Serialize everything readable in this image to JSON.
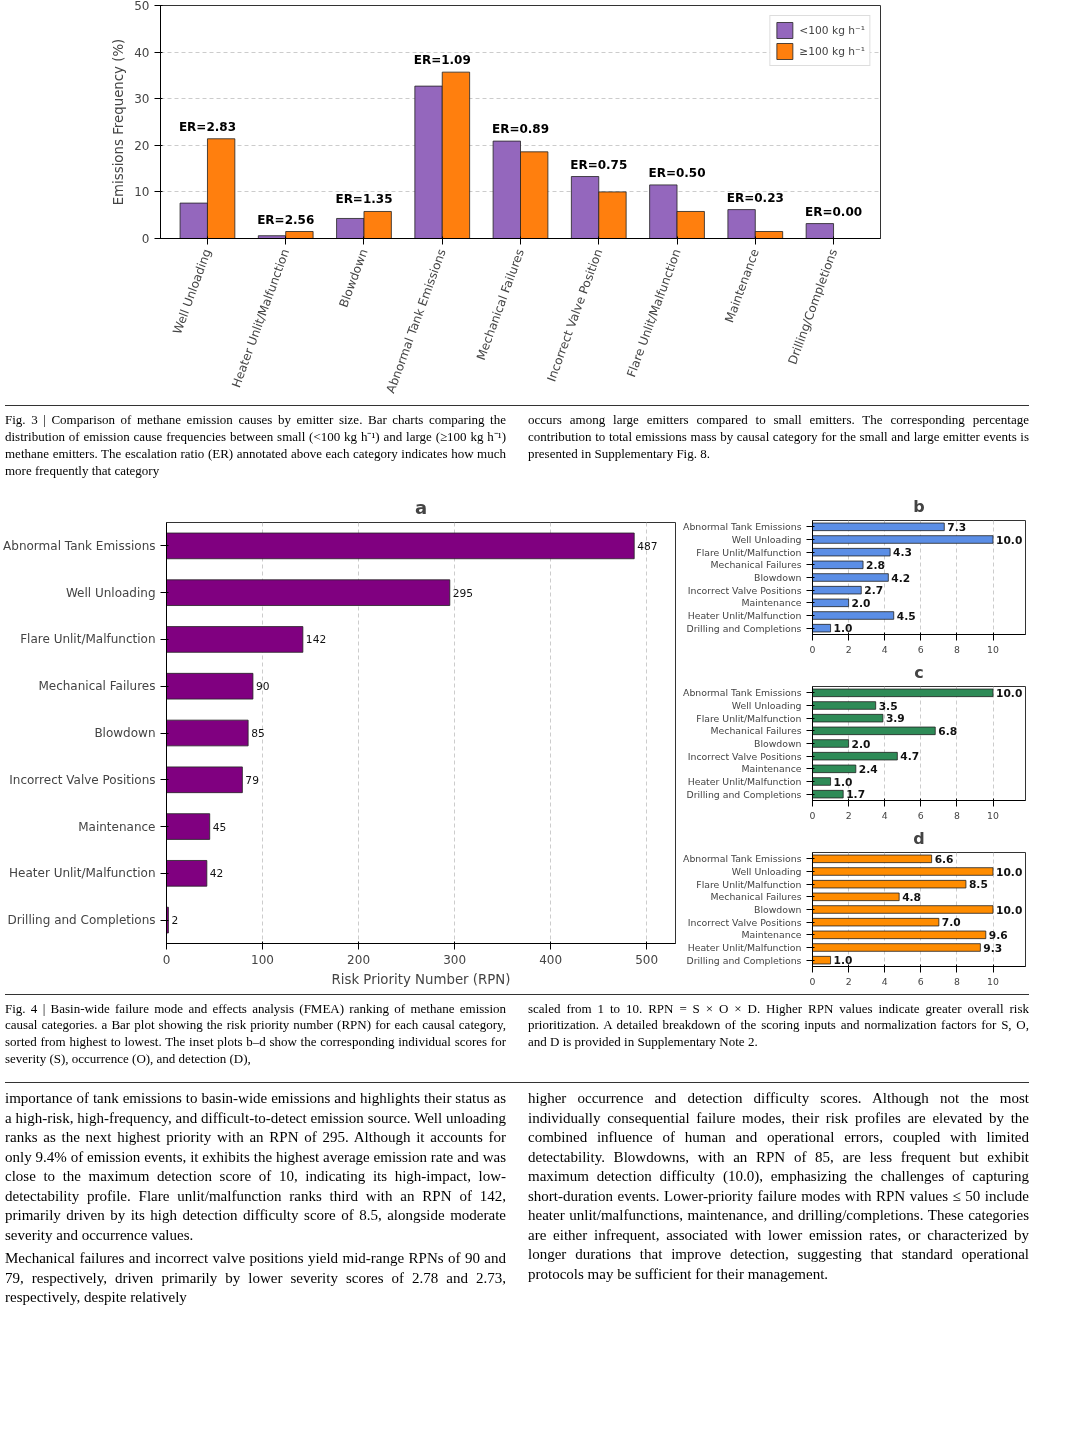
{
  "chart_data": [
    {
      "type": "bar",
      "ylabel": "Emissions Frequency (%)",
      "categories": [
        "Well Unloading",
        "Heater Unlit/Malfunction",
        "Blowdown",
        "Abnormal Tank Emissions",
        "Mechanical Failures",
        "Incorrect Valve Position",
        "Flare Unlit/Malfunction",
        "Maintenance",
        "Drilling/Completions"
      ],
      "series": [
        {
          "name": "<100 kg h⁻¹",
          "color": "#9467bd",
          "values": [
            7.6,
            0.6,
            4.3,
            32.7,
            20.9,
            13.3,
            11.5,
            6.2,
            3.2
          ]
        },
        {
          "name": "≥100 kg h⁻¹",
          "color": "#ff7f0e",
          "values": [
            21.4,
            1.5,
            5.8,
            35.7,
            18.6,
            10.0,
            5.8,
            1.5,
            0
          ]
        }
      ],
      "ylim": [
        0,
        50
      ],
      "yticks": [
        0,
        10,
        20,
        30,
        40,
        50
      ],
      "grid": "y",
      "legend": "top right",
      "annotations": [
        {
          "text": "ER=2.83",
          "x": "Well Unloading",
          "y": 21.4
        },
        {
          "text": "ER=2.56",
          "x": "Heater Unlit/Malfunction",
          "y": 1.5
        },
        {
          "text": "ER=1.35",
          "x": "Blowdown",
          "y": 5.8
        },
        {
          "text": "ER=1.09",
          "x": "Abnormal Tank Emissions",
          "y": 35.7
        },
        {
          "text": "ER=0.89",
          "x": "Mechanical Failures",
          "y": 20.9
        },
        {
          "text": "ER=0.75",
          "x": "Incorrect Valve Position",
          "y": 13.3
        },
        {
          "text": "ER=0.50",
          "x": "Flare Unlit/Malfunction",
          "y": 11.5
        },
        {
          "text": "ER=0.23",
          "x": "Maintenance",
          "y": 6.2
        },
        {
          "text": "ER=0.00",
          "x": "Drilling/Completions",
          "y": 3.2
        },
        "Fig. 3 | Comparison of methane emission causes by emitter size. Bar charts comparing the distribution of emission cause frequencies between small (<100 kg h⁻¹) and large (≥100 kg h⁻¹) methane emitters. The escalation ratio (ER) annotated above each category indicates how much more frequently that category",
        "occurs among large emitters compared to small emitters. The corresponding percentage contribution to total emissions mass by causal category for the small and large emitter events is presented in Supplementary Fig. 8."
      ]
    },
    {
      "type": "bar",
      "title": "a",
      "orientation": "horizontal",
      "xlabel": "Risk Priority Number (RPN)",
      "categories": [
        "Abnormal Tank Emissions",
        "Well Unloading",
        "Flare Unlit/Malfunction",
        "Mechanical Failures",
        "Blowdown",
        "Incorrect Valve Positions",
        "Maintenance",
        "Heater Unlit/Malfunction",
        "Drilling and Completions"
      ],
      "values": [
        487,
        295,
        142,
        90,
        85,
        79,
        45,
        42,
        2
      ],
      "color": "#800080",
      "data_labels": true,
      "xlim": [
        0,
        530
      ],
      "xticks": [
        0,
        100,
        200,
        300,
        400,
        500
      ],
      "grid": "x",
      "annotations": [
        "Fig. 4 | Basin-wide failure mode and effects analysis (FMEA) ranking of methane emission causal categories. a Bar plot showing the risk priority number (RPN) for each causal category, sorted from highest to lowest. The inset plots b–d show the corresponding individual scores for severity (S), occurrence (O), and detection (D),",
        "scaled from 1 to 10. RPN = S × O × D. Higher RPN values indicate greater overall risk prioritization. A detailed breakdown of the scoring inputs and normalization factors for S, O, and D is provided in Supplementary Note 2."
      ]
    },
    {
      "type": "bar",
      "title": "b",
      "orientation": "horizontal",
      "categories": [
        "Abnormal Tank Emissions",
        "Well Unloading",
        "Flare Unlit/Malfunction",
        "Mechanical Failures",
        "Blowdown",
        "Incorrect Valve Positions",
        "Maintenance",
        "Heater Unlit/Malfunction",
        "Drilling and Completions"
      ],
      "values": [
        7.3,
        10.0,
        4.3,
        2.8,
        4.2,
        2.7,
        2.0,
        4.5,
        1.0
      ],
      "value_labels": [
        "7.3",
        "10.0",
        "4.3",
        "2.8",
        "4.2",
        "2.7",
        "2.0",
        "4.5",
        "1.0"
      ],
      "color": "#5b8ee6",
      "xlim": [
        0,
        11.8
      ],
      "xticks": [
        0,
        2,
        4,
        6,
        8,
        10
      ],
      "grid": "x"
    },
    {
      "type": "bar",
      "title": "c",
      "orientation": "horizontal",
      "categories": [
        "Abnormal Tank Emissions",
        "Well Unloading",
        "Flare Unlit/Malfunction",
        "Mechanical Failures",
        "Blowdown",
        "Incorrect Valve Positions",
        "Maintenance",
        "Heater Unlit/Malfunction",
        "Drilling and Completions"
      ],
      "values": [
        10.0,
        3.5,
        3.9,
        6.8,
        2.0,
        4.7,
        2.4,
        1.0,
        1.7
      ],
      "value_labels": [
        "10.0",
        "3.5",
        "3.9",
        "6.8",
        "2.0",
        "4.7",
        "2.4",
        "1.0",
        "1.7"
      ],
      "color": "#2e8b57",
      "xlim": [
        0,
        11.8
      ],
      "xticks": [
        0,
        2,
        4,
        6,
        8,
        10
      ],
      "grid": "x"
    },
    {
      "type": "bar",
      "title": "d",
      "orientation": "horizontal",
      "categories": [
        "Abnormal Tank Emissions",
        "Well Unloading",
        "Flare Unlit/Malfunction",
        "Mechanical Failures",
        "Blowdown",
        "Incorrect Valve Positions",
        "Maintenance",
        "Heater Unlit/Malfunction",
        "Drilling and Completions"
      ],
      "values": [
        6.6,
        10.0,
        8.5,
        4.8,
        10.0,
        7.0,
        9.6,
        9.3,
        1.0
      ],
      "value_labels": [
        "6.6",
        "10.0",
        "8.5",
        "4.8",
        "10.0",
        "7.0",
        "9.6",
        "9.3",
        "1.0"
      ],
      "color": "#ff8c00",
      "xlim": [
        0,
        11.8
      ],
      "xticks": [
        0,
        2,
        4,
        6,
        8,
        10
      ],
      "grid": "x",
      "annotations": [
        "importance of tank emissions to basin-wide emissions and highlights their status as a high-risk, high-frequency, and difficult-to-detect emission source. Well unloading ranks as the next highest priority with an RPN of 295. Although it accounts for only 9.4% of emission events, it exhibits the highest average emission rate and was close to the maximum detection score of 10, indicating its high-impact, low-detectability profile. Flare unlit/malfunction ranks third with an RPN of 142, primarily driven by its high detection difficulty score of 8.5, alongside moderate severity and occurrence values.",
        "Mechanical failures and incorrect valve positions yield mid-range RPNs of 90 and 79, respectively, driven primarily by lower severity scores of 2.78 and 2.73, respectively, despite relatively",
        "higher occurrence and detection difficulty scores. Although not the most individually consequential failure modes, their risk profiles are elevated by the combined influence of human and operational errors, coupled with limited detectability. Blowdowns, with an RPN of 85, are less frequent but exhibit maximum detection difficulty (10.0), emphasizing the challenges of capturing short-duration events. Lower-priority failure modes with RPN values ≤ 50 include heater unlit/malfunctions, maintenance, and drilling/completions. These categories are either infrequent, associated with lower emission rates, or characterized by longer durations that improve detection, suggesting that standard operational protocols may be sufficient for their management."
      ]
    }
  ]
}
